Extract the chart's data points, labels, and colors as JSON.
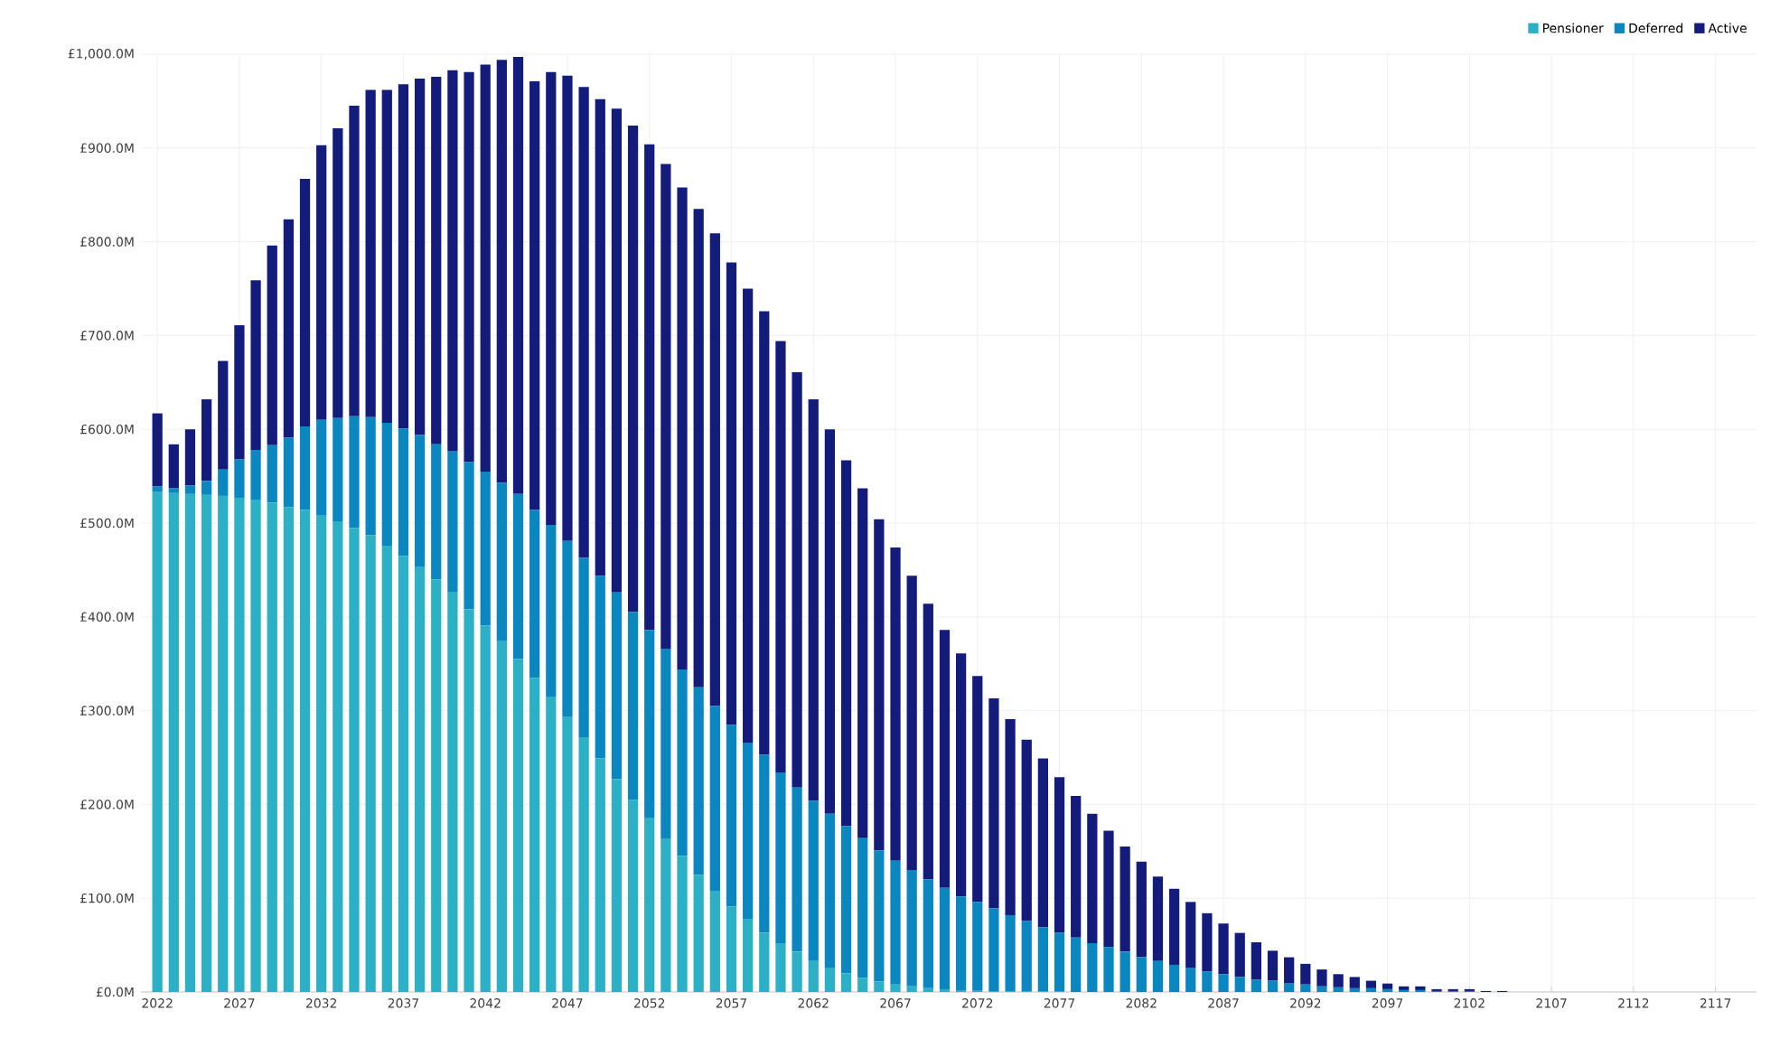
{
  "chart_data": {
    "type": "bar",
    "stacked": true,
    "x": [
      2022,
      2023,
      2024,
      2025,
      2026,
      2027,
      2028,
      2029,
      2030,
      2031,
      2032,
      2033,
      2034,
      2035,
      2036,
      2037,
      2038,
      2039,
      2040,
      2041,
      2042,
      2043,
      2044,
      2045,
      2046,
      2047,
      2048,
      2049,
      2050,
      2051,
      2052,
      2053,
      2054,
      2055,
      2056,
      2057,
      2058,
      2059,
      2060,
      2061,
      2062,
      2063,
      2064,
      2065,
      2066,
      2067,
      2068,
      2069,
      2070,
      2071,
      2072,
      2073,
      2074,
      2075,
      2076,
      2077,
      2078,
      2079,
      2080,
      2081,
      2082,
      2083,
      2084,
      2085,
      2086,
      2087,
      2088,
      2089,
      2090,
      2091,
      2092,
      2093,
      2094,
      2095,
      2096,
      2097,
      2098,
      2099,
      2100,
      2101,
      2102,
      2103,
      2104
    ],
    "series": [
      {
        "name": "Pensioner",
        "color": "#2bb0c6",
        "values": [
          533,
          532,
          531,
          530,
          529,
          527,
          525,
          522,
          517,
          514,
          508,
          502,
          495,
          487,
          476,
          465,
          453,
          440,
          426,
          408,
          391,
          374,
          355,
          335,
          315,
          293,
          271,
          249,
          227,
          205,
          186,
          163,
          145,
          125,
          108,
          91,
          78,
          63,
          52,
          43,
          33,
          26,
          20,
          15,
          11,
          8,
          6,
          4,
          3,
          2,
          2,
          1,
          1,
          1,
          1,
          1,
          0,
          0,
          0,
          0,
          0,
          0,
          0,
          0,
          0,
          0,
          0,
          0,
          0,
          0,
          0,
          0,
          0,
          0,
          0,
          0,
          0,
          0,
          0,
          0,
          0,
          0,
          0
        ]
      },
      {
        "name": "Deferred",
        "color": "#0a86c1",
        "values": [
          6,
          5,
          9,
          15,
          28,
          41,
          53,
          61,
          74,
          89,
          102,
          110,
          119,
          126,
          131,
          136,
          141,
          144,
          151,
          157,
          164,
          169,
          176,
          179,
          183,
          188,
          192,
          195,
          199,
          200,
          200,
          203,
          199,
          200,
          197,
          194,
          188,
          190,
          182,
          175,
          171,
          164,
          157,
          149,
          140,
          132,
          124,
          116,
          108,
          100,
          94,
          88,
          81,
          75,
          68,
          62,
          58,
          52,
          48,
          43,
          37,
          33,
          29,
          26,
          22,
          19,
          16,
          13,
          12,
          9,
          8,
          6,
          5,
          4,
          4,
          3,
          2,
          2,
          1,
          1,
          1,
          0,
          0
        ]
      },
      {
        "name": "Active",
        "color": "#141c7b",
        "values": [
          78,
          47,
          60,
          87,
          116,
          143,
          181,
          213,
          233,
          264,
          293,
          309,
          331,
          349,
          355,
          367,
          380,
          392,
          406,
          416,
          434,
          451,
          466,
          457,
          483,
          496,
          502,
          508,
          516,
          519,
          518,
          517,
          514,
          510,
          504,
          493,
          484,
          473,
          460,
          443,
          428,
          410,
          390,
          373,
          353,
          334,
          314,
          294,
          275,
          259,
          241,
          224,
          209,
          193,
          180,
          166,
          151,
          138,
          124,
          112,
          102,
          90,
          81,
          70,
          62,
          54,
          47,
          40,
          32,
          28,
          22,
          18,
          14,
          12,
          8,
          6,
          4,
          4,
          2,
          2,
          2,
          1,
          1
        ]
      }
    ],
    "xlim": [
      2021,
      2119.5
    ],
    "xticks": [
      2022,
      2027,
      2032,
      2037,
      2042,
      2047,
      2052,
      2057,
      2062,
      2067,
      2072,
      2077,
      2082,
      2087,
      2092,
      2097,
      2102,
      2107,
      2112,
      2117
    ],
    "ylim": [
      0,
      1000
    ],
    "yticks": [
      {
        "value": 0,
        "label": "£0.0M"
      },
      {
        "value": 100,
        "label": "£100.0M"
      },
      {
        "value": 200,
        "label": "£200.0M"
      },
      {
        "value": 300,
        "label": "£300.0M"
      },
      {
        "value": 400,
        "label": "£400.0M"
      },
      {
        "value": 500,
        "label": "£500.0M"
      },
      {
        "value": 600,
        "label": "£600.0M"
      },
      {
        "value": 700,
        "label": "£700.0M"
      },
      {
        "value": 800,
        "label": "£800.0M"
      },
      {
        "value": 900,
        "label": "£900.0M"
      },
      {
        "value": 1000,
        "label": "£1,000.0M"
      }
    ],
    "grid": true,
    "legend": "top right"
  }
}
